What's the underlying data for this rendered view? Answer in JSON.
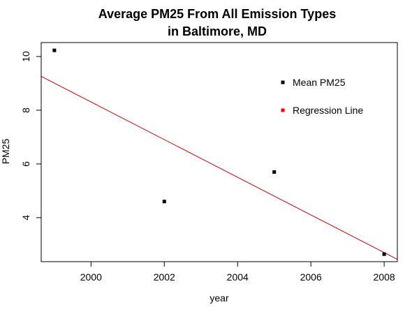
{
  "chart_data": {
    "type": "scatter",
    "title": [
      "Average PM25 From All Emission Types",
      "in Baltimore, MD"
    ],
    "xlabel": "year",
    "ylabel": "PM25",
    "xlim": [
      1998.64,
      2008.36
    ],
    "ylim": [
      2.36,
      10.52
    ],
    "x_ticks": [
      2000,
      2002,
      2004,
      2006,
      2008
    ],
    "y_ticks": [
      4,
      6,
      8,
      10
    ],
    "grid": false,
    "series": [
      {
        "name": "Mean PM25",
        "color": "#000000",
        "marker": "square",
        "points": [
          {
            "x": 1999,
            "y": 10.23
          },
          {
            "x": 2002,
            "y": 4.6
          },
          {
            "x": 2005,
            "y": 5.7
          },
          {
            "x": 2008,
            "y": 2.64
          }
        ]
      }
    ],
    "regression_line": {
      "name": "Regression Line",
      "color": "#cc0000",
      "intercept_at_1998_64": 9.26,
      "slope": -0.701
    },
    "legend": {
      "placement": "top-right",
      "entries": [
        {
          "label": "Mean PM25",
          "color": "#000000"
        },
        {
          "label": "Regression Line",
          "color": "#ff0000"
        }
      ]
    }
  }
}
